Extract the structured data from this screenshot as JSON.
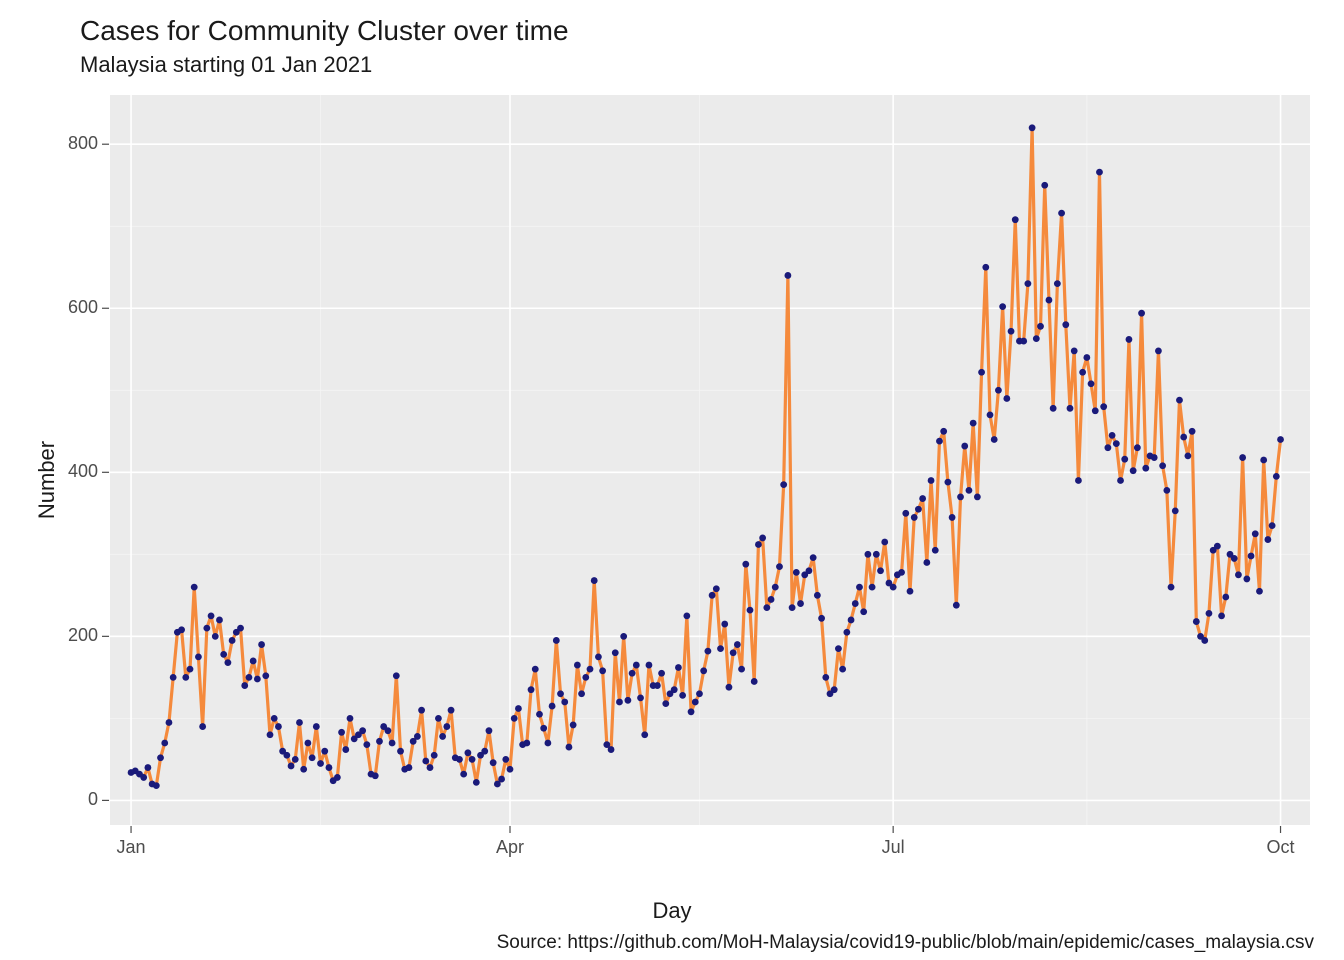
{
  "chart": {
    "type": "line",
    "title": "Cases for Community Cluster over time",
    "subtitle": "Malaysia starting 01 Jan 2021",
    "xlabel": "Day",
    "ylabel": "Number",
    "caption": "Source: https://github.com/MoH-Malaysia/covid19-public/blob/main/epidemic/cases_malaysia.csv",
    "title_fontsize": 28,
    "subtitle_fontsize": 22,
    "label_fontsize": 22,
    "tick_fontsize": 18,
    "caption_fontsize": 19,
    "background_color": "#ffffff",
    "panel_color": "#ebebeb",
    "grid_major_color": "#ffffff",
    "grid_minor_color": "#f5f5f5",
    "line_color": "#f58a3c",
    "point_color": "#1a1a7a",
    "line_width": 3.2,
    "point_radius": 3.4,
    "x": {
      "domain_days": [
        -5,
        280
      ],
      "major_ticks": [
        0,
        90,
        181,
        273
      ],
      "major_labels": [
        "Jan",
        "Apr",
        "Jul",
        "Oct"
      ],
      "minor_ticks": [
        45,
        135,
        227
      ]
    },
    "y": {
      "domain": [
        -30,
        860
      ],
      "major_ticks": [
        0,
        200,
        400,
        600,
        800
      ],
      "major_labels": [
        "0",
        "200",
        "400",
        "600",
        "800"
      ],
      "minor_ticks": [
        100,
        300,
        500,
        700
      ]
    },
    "values": [
      34,
      36,
      32,
      28,
      40,
      20,
      18,
      52,
      70,
      95,
      150,
      205,
      208,
      150,
      160,
      260,
      175,
      90,
      210,
      225,
      200,
      220,
      178,
      168,
      195,
      205,
      210,
      140,
      150,
      170,
      148,
      190,
      152,
      80,
      100,
      90,
      60,
      55,
      42,
      50,
      95,
      38,
      70,
      52,
      90,
      45,
      60,
      40,
      24,
      28,
      83,
      62,
      100,
      75,
      80,
      85,
      68,
      32,
      30,
      72,
      90,
      85,
      70,
      152,
      60,
      38,
      40,
      72,
      78,
      110,
      48,
      40,
      55,
      100,
      78,
      90,
      110,
      52,
      50,
      32,
      58,
      50,
      22,
      55,
      60,
      85,
      46,
      20,
      26,
      50,
      38,
      100,
      112,
      68,
      70,
      135,
      160,
      105,
      88,
      70,
      115,
      195,
      130,
      120,
      65,
      92,
      165,
      130,
      150,
      160,
      268,
      175,
      158,
      68,
      62,
      180,
      120,
      200,
      122,
      155,
      165,
      125,
      80,
      165,
      140,
      140,
      155,
      118,
      130,
      135,
      162,
      128,
      225,
      108,
      120,
      130,
      158,
      182,
      250,
      258,
      185,
      215,
      138,
      180,
      190,
      160,
      288,
      232,
      145,
      312,
      320,
      235,
      245,
      260,
      285,
      385,
      640,
      235,
      278,
      240,
      275,
      280,
      296,
      250,
      222,
      150,
      130,
      135,
      185,
      160,
      205,
      220,
      240,
      260,
      230,
      300,
      260,
      300,
      280,
      315,
      265,
      260,
      275,
      278,
      350,
      255,
      345,
      355,
      368,
      290,
      390,
      305,
      438,
      450,
      388,
      345,
      238,
      370,
      432,
      378,
      460,
      370,
      522,
      650,
      470,
      440,
      500,
      602,
      490,
      572,
      708,
      560,
      560,
      630,
      820,
      563,
      578,
      750,
      610,
      478,
      630,
      716,
      580,
      478,
      548,
      390,
      522,
      540,
      508,
      475,
      766,
      480,
      430,
      445,
      435,
      390,
      416,
      562,
      402,
      430,
      594,
      405,
      420,
      418,
      548,
      408,
      378,
      260,
      353,
      488,
      443,
      420,
      450,
      218,
      200,
      195,
      228,
      305,
      310,
      225,
      248,
      300,
      295,
      275,
      418,
      270,
      298,
      325,
      255,
      415,
      318,
      335,
      395,
      440
    ]
  }
}
